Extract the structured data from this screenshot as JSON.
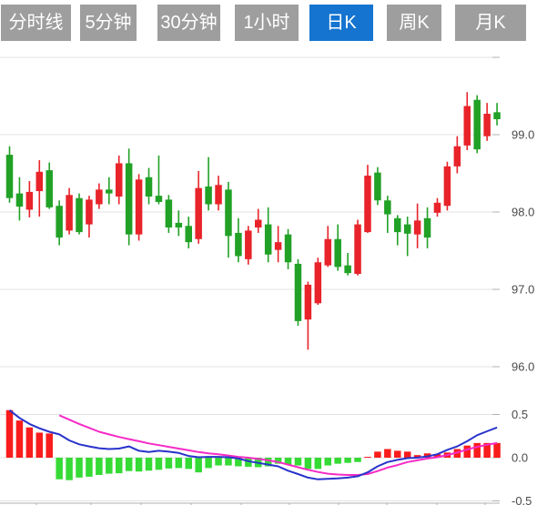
{
  "tabbar": {
    "items": [
      {
        "key": "timeline",
        "label": "分时线",
        "active": false
      },
      {
        "key": "5min",
        "label": "5分钟",
        "active": false
      },
      {
        "key": "30min",
        "label": "30分钟",
        "active": false
      },
      {
        "key": "1hour",
        "label": "1小时",
        "active": false
      },
      {
        "key": "daily-k",
        "label": "日K",
        "active": true
      },
      {
        "key": "weekly-k",
        "label": "周K",
        "active": false
      },
      {
        "key": "monthly-k",
        "label": "月K",
        "active": false
      }
    ]
  },
  "colors": {
    "background": "#ffffff",
    "tab_active_bg": "#1574d0",
    "tab_inactive_bg": "#9e9e9e",
    "tab_text": "#ffffff",
    "candle_up": "#e8232a",
    "candle_down": "#21a126",
    "macd_bar_up": "#f91c1c",
    "macd_bar_down": "#35da35",
    "dif_line": "#2833cb",
    "dea_line": "#f62ac6",
    "grid": "#e3e3e3",
    "axis": "#b0b0b0",
    "axis_text": "#4a4a4a"
  },
  "price_axis": {
    "labels": [
      "99.0",
      "98.0",
      "97.0",
      "96.0"
    ],
    "values": [
      99,
      98,
      97,
      96
    ],
    "unlabeled_top_gridline_value": 100
  },
  "macd_axis": {
    "labels": [
      "0.5",
      "0.0",
      "-0.5"
    ],
    "values": [
      0.5,
      0,
      -0.5
    ]
  },
  "chart_data": [
    {
      "type": "candlestick",
      "series_name": "daily-k-candles",
      "note": "values are [open,high,low,close]; close>=open renders red (up), close<open renders green (down)",
      "ylim": [
        95.8,
        100.1
      ],
      "candles": [
        [
          98.74,
          98.85,
          98.12,
          98.18
        ],
        [
          98.24,
          98.45,
          97.89,
          98.07
        ],
        [
          98.03,
          98.4,
          97.93,
          98.26
        ],
        [
          98.27,
          98.67,
          97.94,
          98.52
        ],
        [
          98.54,
          98.64,
          98.04,
          98.06
        ],
        [
          98.08,
          98.15,
          97.57,
          97.67
        ],
        [
          97.76,
          98.31,
          97.71,
          98.22
        ],
        [
          98.18,
          98.24,
          97.71,
          97.74
        ],
        [
          97.84,
          98.21,
          97.67,
          98.16
        ],
        [
          98.1,
          98.37,
          98.04,
          98.29
        ],
        [
          98.29,
          98.45,
          98.1,
          98.24
        ],
        [
          98.2,
          98.73,
          98.1,
          98.63
        ],
        [
          98.63,
          98.82,
          97.57,
          97.71
        ],
        [
          97.71,
          98.49,
          97.63,
          98.42
        ],
        [
          98.45,
          98.57,
          98.1,
          98.2
        ],
        [
          98.21,
          98.73,
          98.1,
          98.13
        ],
        [
          98.16,
          98.22,
          97.73,
          97.8
        ],
        [
          97.86,
          98.02,
          97.69,
          97.8
        ],
        [
          97.82,
          97.94,
          97.53,
          97.61
        ],
        [
          97.65,
          98.53,
          97.59,
          98.31
        ],
        [
          98.33,
          98.71,
          98.02,
          98.1
        ],
        [
          98.1,
          98.47,
          98.02,
          98.35
        ],
        [
          98.29,
          98.39,
          97.41,
          97.69
        ],
        [
          97.73,
          97.92,
          97.35,
          97.43
        ],
        [
          97.39,
          97.82,
          97.32,
          97.76
        ],
        [
          97.8,
          98.04,
          97.73,
          97.9
        ],
        [
          97.84,
          98.06,
          97.35,
          97.45
        ],
        [
          97.51,
          97.82,
          97.35,
          97.61
        ],
        [
          97.71,
          97.78,
          97.26,
          97.35
        ],
        [
          97.33,
          97.39,
          96.53,
          96.59
        ],
        [
          96.61,
          97.1,
          96.22,
          97.06
        ],
        [
          96.82,
          97.41,
          96.8,
          97.35
        ],
        [
          97.31,
          97.82,
          97.29,
          97.65
        ],
        [
          97.65,
          97.84,
          97.24,
          97.29
        ],
        [
          97.31,
          97.47,
          97.18,
          97.21
        ],
        [
          97.2,
          97.9,
          97.18,
          97.84
        ],
        [
          97.74,
          98.61,
          97.73,
          98.47
        ],
        [
          98.51,
          98.58,
          98.09,
          98.15
        ],
        [
          98.15,
          98.21,
          97.73,
          97.97
        ],
        [
          97.92,
          97.96,
          97.57,
          97.74
        ],
        [
          97.84,
          97.94,
          97.43,
          97.72
        ],
        [
          97.71,
          98.11,
          97.53,
          97.89
        ],
        [
          97.92,
          98.06,
          97.53,
          97.67
        ],
        [
          97.99,
          98.18,
          97.94,
          98.12
        ],
        [
          98.08,
          98.65,
          98.02,
          98.59
        ],
        [
          98.59,
          98.98,
          98.5,
          98.85
        ],
        [
          98.86,
          99.55,
          98.8,
          99.37
        ],
        [
          99.45,
          99.51,
          98.76,
          98.81
        ],
        [
          98.98,
          99.41,
          98.92,
          99.27
        ],
        [
          99.29,
          99.41,
          99.12,
          99.2
        ]
      ]
    },
    {
      "type": "bar",
      "series_name": "macd-histogram",
      "ylim": [
        -0.5,
        0.5
      ],
      "values": [
        0.55,
        0.43,
        0.35,
        0.29,
        0.28,
        -0.25,
        -0.26,
        -0.23,
        -0.22,
        -0.2,
        -0.185,
        -0.18,
        -0.155,
        -0.16,
        -0.15,
        -0.14,
        -0.125,
        -0.12,
        -0.13,
        -0.17,
        -0.12,
        -0.09,
        -0.09,
        -0.1,
        -0.105,
        -0.11,
        -0.1,
        -0.07,
        -0.08,
        -0.09,
        -0.13,
        -0.13,
        -0.09,
        -0.07,
        -0.06,
        -0.05,
        0.01,
        0.07,
        0.1,
        0.08,
        0.07,
        0.03,
        0.05,
        0.04,
        0.06,
        0.1,
        0.14,
        0.17,
        0.17,
        0.17
      ]
    },
    {
      "type": "line",
      "series_name": "dif",
      "start_index": 0,
      "values": [
        0.55,
        0.46,
        0.39,
        0.34,
        0.3,
        0.27,
        0.2,
        0.155,
        0.13,
        0.11,
        0.1,
        0.105,
        0.13,
        0.08,
        0.065,
        0.08,
        0.07,
        0.055,
        0.02,
        0.005,
        0.01,
        0.01,
        0.005,
        -0.01,
        -0.04,
        -0.06,
        -0.08,
        -0.1,
        -0.15,
        -0.19,
        -0.23,
        -0.25,
        -0.245,
        -0.24,
        -0.23,
        -0.215,
        -0.17,
        -0.1,
        -0.05,
        -0.025,
        -0.005,
        0.0,
        0.015,
        0.04,
        0.09,
        0.13,
        0.19,
        0.26,
        0.305,
        0.35
      ]
    },
    {
      "type": "line",
      "series_name": "dea",
      "start_index": 5,
      "values": [
        0.49,
        0.44,
        0.39,
        0.345,
        0.3,
        0.27,
        0.24,
        0.215,
        0.19,
        0.165,
        0.145,
        0.125,
        0.105,
        0.085,
        0.065,
        0.05,
        0.04,
        0.025,
        0.01,
        0.0,
        -0.015,
        -0.03,
        -0.05,
        -0.08,
        -0.11,
        -0.14,
        -0.165,
        -0.185,
        -0.195,
        -0.2,
        -0.2,
        -0.19,
        -0.155,
        -0.115,
        -0.085,
        -0.05,
        -0.03,
        -0.01,
        0.005,
        0.03,
        0.06,
        0.095,
        0.125,
        0.15,
        0.17
      ]
    }
  ]
}
